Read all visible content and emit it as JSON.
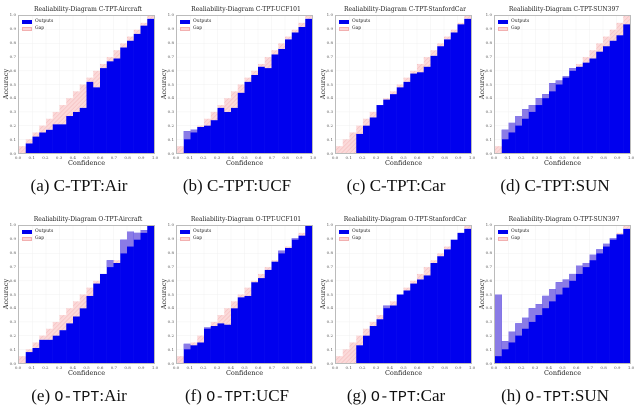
{
  "colors": {
    "outputs": "#0000ee",
    "gap_over": "#8a7be6",
    "gap_under": "#fbd5d5",
    "gap_hatch": "#f0a8a8",
    "frame": "#bbbbbb"
  },
  "legend": {
    "outputs": "Outputs",
    "gap": "Gap"
  },
  "axes": {
    "xlabel": "Confidence",
    "ylabel": "Accuracy",
    "xticks": [
      "0.0",
      "0.1",
      "0.2",
      "0.3",
      "0.4",
      "0.5",
      "0.6",
      "0.7",
      "0.8",
      "0.9",
      "1.0"
    ],
    "yticks": [
      "0.0",
      "0.1",
      "0.2",
      "0.3",
      "0.4",
      "0.5",
      "0.6",
      "0.7",
      "0.8",
      "0.9",
      "1.0"
    ]
  },
  "panels": [
    {
      "title": "Realiability-Diagram C-TPT-Aircraft",
      "caption_prefix": "(a) ",
      "caption_method": "C-TPT",
      "caption_suffix": ":Air",
      "mono": false
    },
    {
      "title": "Realiability-Diagram C-TPT-UCF101",
      "caption_prefix": "(b) ",
      "caption_method": "C-TPT",
      "caption_suffix": ":UCF",
      "mono": false
    },
    {
      "title": "Realiability-Diagram C-TPT-StanfordCar",
      "caption_prefix": "(c) ",
      "caption_method": "C-TPT",
      "caption_suffix": ":Car",
      "mono": false
    },
    {
      "title": "Realiability-Diagram C-TPT-SUN397",
      "caption_prefix": "(d) ",
      "caption_method": "C-TPT",
      "caption_suffix": ":SUN",
      "mono": false
    },
    {
      "title": "Realiability-Diagram O-TPT-Aircraft",
      "caption_prefix": "(e) ",
      "caption_method": "O-TPT",
      "caption_suffix": ":Air",
      "mono": true
    },
    {
      "title": "Realiability-Diagram O-TPT-UCF101",
      "caption_prefix": "(f) ",
      "caption_method": "O-TPT",
      "caption_suffix": ":UCF",
      "mono": true
    },
    {
      "title": "Realiability-Diagram O-TPT-StanfordCar",
      "caption_prefix": "(g) ",
      "caption_method": "O-TPT",
      "caption_suffix": ":Car",
      "mono": true
    },
    {
      "title": "Realiability-Diagram O-TPT-SUN397",
      "caption_prefix": "(h) ",
      "caption_method": "O-TPT",
      "caption_suffix": ":SUN",
      "mono": true
    }
  ],
  "chart_data": [
    {
      "type": "bar",
      "title": "Realiability-Diagram C-TPT-Aircraft",
      "xlabel": "Confidence",
      "ylabel": "Accuracy",
      "xlim": [
        0,
        1
      ],
      "ylim": [
        0,
        1
      ],
      "bins": 20,
      "grid": true,
      "legend": [
        "Outputs",
        "Gap"
      ],
      "legend_position": "upper left",
      "x": [
        0.025,
        0.075,
        0.125,
        0.175,
        0.225,
        0.275,
        0.325,
        0.375,
        0.425,
        0.475,
        0.525,
        0.575,
        0.625,
        0.675,
        0.725,
        0.775,
        0.825,
        0.875,
        0.925,
        0.975
      ],
      "values": [
        0.0,
        0.07,
        0.12,
        0.15,
        0.17,
        0.21,
        0.21,
        0.27,
        0.3,
        0.33,
        0.52,
        0.48,
        0.62,
        0.67,
        0.69,
        0.77,
        0.82,
        0.87,
        0.93,
        0.98
      ]
    },
    {
      "type": "bar",
      "title": "Realiability-Diagram C-TPT-UCF101",
      "xlabel": "Confidence",
      "ylabel": "Accuracy",
      "xlim": [
        0,
        1
      ],
      "ylim": [
        0,
        1
      ],
      "bins": 20,
      "grid": true,
      "legend": [
        "Outputs",
        "Gap"
      ],
      "legend_position": "upper left",
      "x": [
        0.025,
        0.075,
        0.125,
        0.175,
        0.225,
        0.275,
        0.325,
        0.375,
        0.425,
        0.475,
        0.525,
        0.575,
        0.625,
        0.675,
        0.725,
        0.775,
        0.825,
        0.875,
        0.925,
        0.975
      ],
      "values": [
        0.0,
        0.16,
        0.17,
        0.19,
        0.2,
        0.24,
        0.33,
        0.3,
        0.33,
        0.44,
        0.52,
        0.57,
        0.63,
        0.62,
        0.72,
        0.76,
        0.83,
        0.88,
        0.92,
        0.98
      ]
    },
    {
      "type": "bar",
      "title": "Realiability-Diagram C-TPT-StanfordCar",
      "xlabel": "Confidence",
      "ylabel": "Accuracy",
      "xlim": [
        0,
        1
      ],
      "ylim": [
        0,
        1
      ],
      "bins": 20,
      "grid": true,
      "legend": [
        "Outputs",
        "Gap"
      ],
      "legend_position": "upper left",
      "x": [
        0.025,
        0.075,
        0.125,
        0.175,
        0.225,
        0.275,
        0.325,
        0.375,
        0.425,
        0.475,
        0.525,
        0.575,
        0.625,
        0.675,
        0.725,
        0.775,
        0.825,
        0.875,
        0.925,
        0.975
      ],
      "values": [
        0.0,
        0.0,
        0.0,
        0.14,
        0.2,
        0.26,
        0.35,
        0.39,
        0.43,
        0.48,
        0.52,
        0.58,
        0.59,
        0.63,
        0.71,
        0.78,
        0.83,
        0.88,
        0.94,
        0.98
      ]
    },
    {
      "type": "bar",
      "title": "Realiability-Diagram C-TPT-SUN397",
      "xlabel": "Confidence",
      "ylabel": "Accuracy",
      "xlim": [
        0,
        1
      ],
      "ylim": [
        0,
        1
      ],
      "bins": 20,
      "grid": true,
      "legend": [
        "Outputs",
        "Gap"
      ],
      "legend_position": "upper left",
      "x": [
        0.025,
        0.075,
        0.125,
        0.175,
        0.225,
        0.275,
        0.325,
        0.375,
        0.425,
        0.475,
        0.525,
        0.575,
        0.625,
        0.675,
        0.725,
        0.775,
        0.825,
        0.875,
        0.925,
        0.975
      ],
      "values": [
        0.0,
        0.17,
        0.22,
        0.27,
        0.32,
        0.35,
        0.4,
        0.43,
        0.51,
        0.53,
        0.56,
        0.62,
        0.63,
        0.66,
        0.69,
        0.74,
        0.78,
        0.82,
        0.86,
        0.94
      ]
    },
    {
      "type": "bar",
      "title": "Realiability-Diagram O-TPT-Aircraft",
      "xlabel": "Confidence",
      "ylabel": "Accuracy",
      "xlim": [
        0,
        1
      ],
      "ylim": [
        0,
        1
      ],
      "bins": 20,
      "grid": true,
      "legend": [
        "Outputs",
        "Gap"
      ],
      "legend_position": "upper left",
      "x": [
        0.025,
        0.075,
        0.125,
        0.175,
        0.225,
        0.275,
        0.325,
        0.375,
        0.425,
        0.475,
        0.525,
        0.575,
        0.625,
        0.675,
        0.725,
        0.775,
        0.825,
        0.875,
        0.925,
        0.975
      ],
      "values": [
        0.0,
        0.08,
        0.11,
        0.17,
        0.17,
        0.2,
        0.24,
        0.29,
        0.34,
        0.4,
        0.49,
        0.58,
        0.65,
        0.75,
        0.73,
        0.9,
        0.96,
        0.95,
        0.97,
        1.0
      ]
    },
    {
      "type": "bar",
      "title": "Realiability-Diagram O-TPT-UCF101",
      "xlabel": "Confidence",
      "ylabel": "Accuracy",
      "xlim": [
        0,
        1
      ],
      "ylim": [
        0,
        1
      ],
      "bins": 20,
      "grid": true,
      "legend": [
        "Outputs",
        "Gap"
      ],
      "legend_position": "upper left",
      "x": [
        0.025,
        0.075,
        0.125,
        0.175,
        0.225,
        0.275,
        0.325,
        0.375,
        0.425,
        0.475,
        0.525,
        0.575,
        0.625,
        0.675,
        0.725,
        0.775,
        0.825,
        0.875,
        0.925,
        0.975
      ],
      "values": [
        0.0,
        0.14,
        0.13,
        0.15,
        0.26,
        0.27,
        0.29,
        0.28,
        0.4,
        0.48,
        0.49,
        0.59,
        0.62,
        0.68,
        0.74,
        0.82,
        0.84,
        0.91,
        0.93,
        1.0
      ]
    },
    {
      "type": "bar",
      "title": "Realiability-Diagram O-TPT-StanfordCar",
      "xlabel": "Confidence",
      "ylabel": "Accuracy",
      "xlim": [
        0,
        1
      ],
      "ylim": [
        0,
        1
      ],
      "bins": 20,
      "grid": true,
      "legend": [
        "Outputs",
        "Gap"
      ],
      "legend_position": "upper left",
      "x": [
        0.025,
        0.075,
        0.125,
        0.175,
        0.225,
        0.275,
        0.325,
        0.375,
        0.425,
        0.475,
        0.525,
        0.575,
        0.625,
        0.675,
        0.725,
        0.775,
        0.825,
        0.875,
        0.925,
        0.975
      ],
      "values": [
        0.0,
        0.0,
        0.0,
        0.13,
        0.2,
        0.27,
        0.32,
        0.42,
        0.42,
        0.5,
        0.53,
        0.58,
        0.61,
        0.64,
        0.73,
        0.78,
        0.83,
        0.9,
        0.95,
        0.98
      ]
    },
    {
      "type": "bar",
      "title": "Realiability-Diagram O-TPT-SUN397",
      "xlabel": "Confidence",
      "ylabel": "Accuracy",
      "xlim": [
        0,
        1
      ],
      "ylim": [
        0,
        1
      ],
      "bins": 20,
      "grid": true,
      "legend": [
        "Outputs",
        "Gap"
      ],
      "legend_position": "upper left",
      "x": [
        0.025,
        0.075,
        0.125,
        0.175,
        0.225,
        0.275,
        0.325,
        0.375,
        0.425,
        0.475,
        0.525,
        0.575,
        0.625,
        0.675,
        0.725,
        0.775,
        0.825,
        0.875,
        0.925,
        0.975
      ],
      "values": [
        0.5,
        0.16,
        0.23,
        0.29,
        0.33,
        0.4,
        0.43,
        0.49,
        0.54,
        0.59,
        0.61,
        0.65,
        0.71,
        0.73,
        0.79,
        0.83,
        0.87,
        0.91,
        0.94,
        0.98
      ]
    }
  ]
}
